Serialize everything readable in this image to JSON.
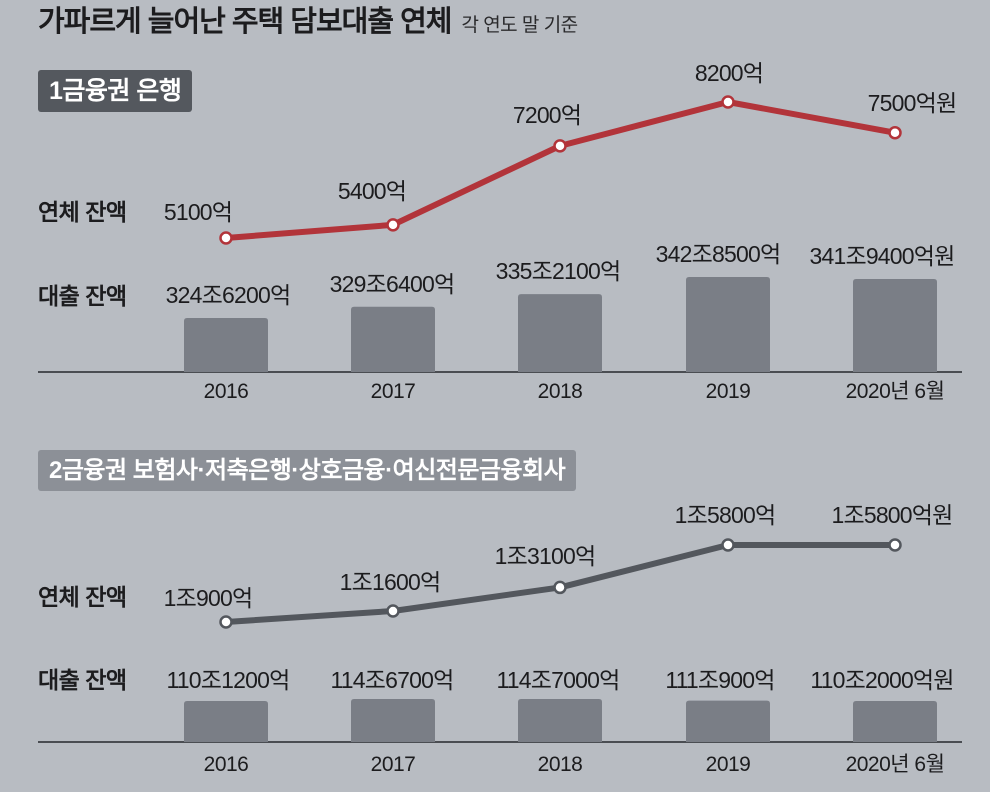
{
  "header": {
    "title": "가파르게 늘어난 주택 담보대출 연체",
    "subtitle": "각 연도 말 기준"
  },
  "colors": {
    "background": "#b8bcc2",
    "text": "#1c1c1e",
    "axis": "#4a4d52",
    "bank_label_box": "#54585e",
    "nonbank_label_box": "#8c9097",
    "label_box_text": "#ffffff",
    "point_fill": "#ffffff"
  },
  "chart_data": [
    {
      "type": "bar",
      "title": "1금융권 은행",
      "categories": [
        "2016",
        "2017",
        "2018",
        "2019",
        "2020년 6월"
      ],
      "grid": false,
      "series": [
        {
          "name": "연체 잔액",
          "type": "line",
          "color": "#b2343a",
          "values": [
            5100,
            5400,
            7200,
            8200,
            7500
          ],
          "labels": [
            "5100억",
            "5400억",
            "7200억",
            "8200억",
            "7500억원"
          ]
        },
        {
          "name": "대출 잔액",
          "type": "bar",
          "color": "#7a7e86",
          "values": [
            3246200,
            3296400,
            3352100,
            3428500,
            3419400
          ],
          "labels": [
            "324조6200억",
            "329조6400억",
            "335조2100억",
            "342조8500억",
            "341조9400억원"
          ]
        }
      ]
    },
    {
      "type": "bar",
      "title": "2금융권 보험사·저축은행·상호금융·여신전문금융회사",
      "categories": [
        "2016",
        "2017",
        "2018",
        "2019",
        "2020년 6월"
      ],
      "grid": false,
      "series": [
        {
          "name": "연체 잔액",
          "type": "line",
          "color": "#53575d",
          "values": [
            10900,
            11600,
            13100,
            15800,
            15800
          ],
          "labels": [
            "1조900억",
            "1조1600억",
            "1조3100억",
            "1조5800억",
            "1조5800억원"
          ]
        },
        {
          "name": "대출 잔액",
          "type": "bar",
          "color": "#7a7e86",
          "values": [
            1101200,
            1146700,
            1147000,
            1110900,
            1102000
          ],
          "labels": [
            "110조1200억",
            "114조6700억",
            "114조7000억",
            "111조900억",
            "110조2000억원"
          ]
        }
      ]
    }
  ]
}
